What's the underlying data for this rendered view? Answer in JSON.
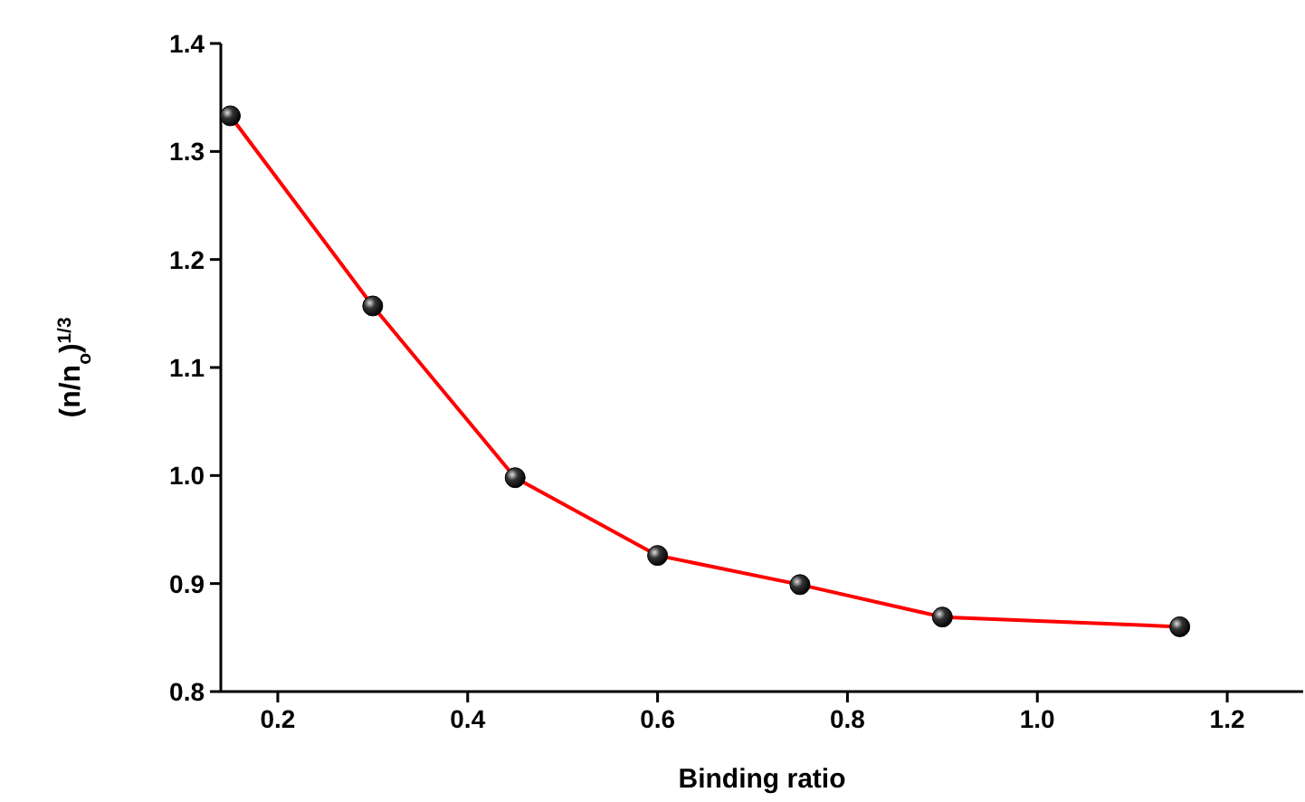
{
  "chart_data": {
    "type": "line",
    "xlabel": "Binding ratio",
    "ylabel": "(n/n$_{o}$)$^{1/3}$",
    "x": [
      0.15,
      0.3,
      0.45,
      0.6,
      0.75,
      0.9,
      1.15
    ],
    "series": [
      {
        "color": "#ff0000",
        "values": [
          1.333,
          1.157,
          0.998,
          0.926,
          0.899,
          0.869,
          0.86
        ]
      }
    ],
    "xlim": [
      0.14,
      1.28
    ],
    "xticks": [
      0.2,
      0.4,
      0.6,
      0.8,
      {
        "value": 1,
        "label": "1.0"
      },
      1.2
    ],
    "ylim": [
      0.8,
      1.4
    ],
    "yticks": [
      0.8,
      0.9,
      {
        "value": 1,
        "label": "1.0"
      },
      1.1,
      1.2,
      1.3,
      1.4
    ],
    "marker": "circle"
  }
}
